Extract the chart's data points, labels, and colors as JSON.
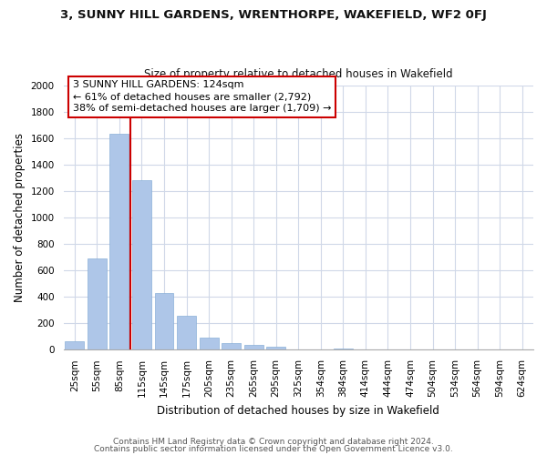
{
  "title": "3, SUNNY HILL GARDENS, WRENTHORPE, WAKEFIELD, WF2 0FJ",
  "subtitle": "Size of property relative to detached houses in Wakefield",
  "xlabel": "Distribution of detached houses by size in Wakefield",
  "ylabel": "Number of detached properties",
  "bar_categories": [
    "25sqm",
    "55sqm",
    "85sqm",
    "115sqm",
    "145sqm",
    "175sqm",
    "205sqm",
    "235sqm",
    "265sqm",
    "295sqm",
    "325sqm",
    "354sqm",
    "384sqm",
    "414sqm",
    "444sqm",
    "474sqm",
    "504sqm",
    "534sqm",
    "564sqm",
    "594sqm",
    "624sqm"
  ],
  "bar_values": [
    65,
    690,
    1635,
    1285,
    430,
    255,
    90,
    52,
    35,
    22,
    0,
    0,
    12,
    0,
    0,
    0,
    0,
    0,
    0,
    0,
    0
  ],
  "bar_color": "#aec6e8",
  "bar_edge_color": "#8ab0d8",
  "marker_line_index": 2.5,
  "marker_color": "#cc0000",
  "ylim": [
    0,
    2000
  ],
  "yticks": [
    0,
    200,
    400,
    600,
    800,
    1000,
    1200,
    1400,
    1600,
    1800,
    2000
  ],
  "annotation_line1": "3 SUNNY HILL GARDENS: 124sqm",
  "annotation_line2": "← 61% of detached houses are smaller (2,792)",
  "annotation_line3": "38% of semi-detached houses are larger (1,709) →",
  "footnote1": "Contains HM Land Registry data © Crown copyright and database right 2024.",
  "footnote2": "Contains public sector information licensed under the Open Government Licence v3.0.",
  "background_color": "#ffffff",
  "grid_color": "#d0d8e8",
  "title_fontsize": 9.5,
  "subtitle_fontsize": 8.5,
  "axis_label_fontsize": 8.5,
  "tick_fontsize": 7.5,
  "annot_fontsize": 8.0,
  "footnote_fontsize": 6.5
}
